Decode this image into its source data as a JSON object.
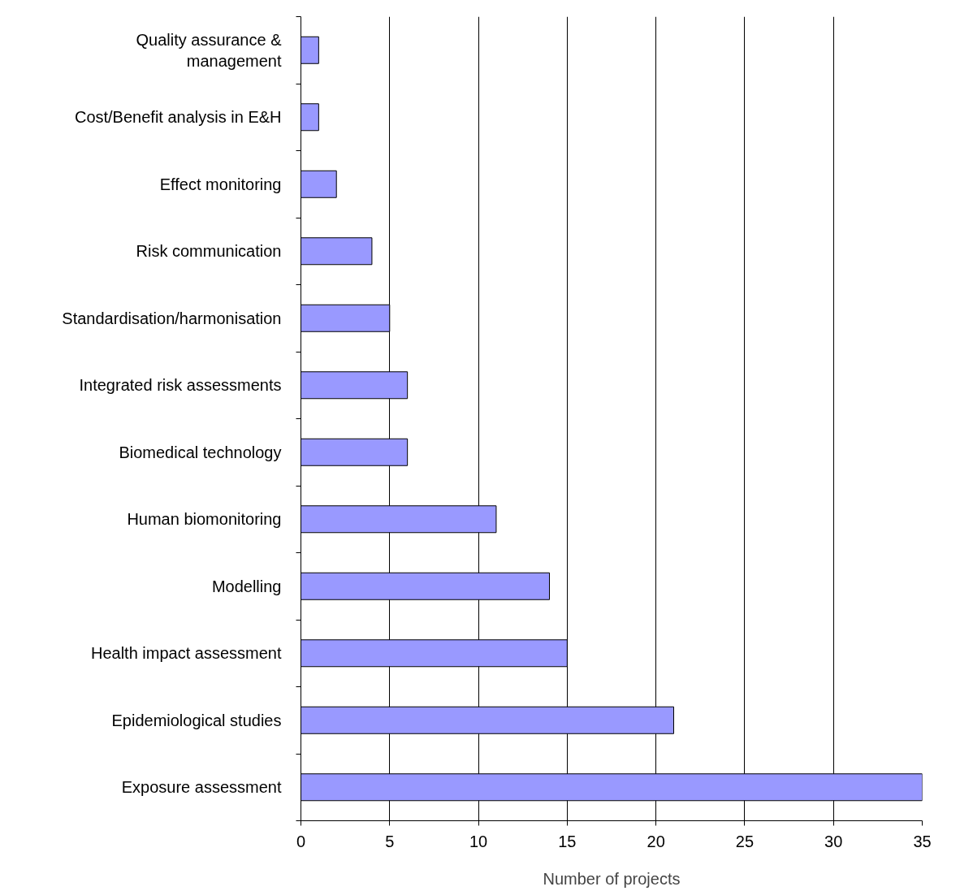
{
  "chart_data": {
    "type": "bar",
    "orientation": "horizontal",
    "xlabel": "Number of projects",
    "categories": [
      "Quality assurance & management",
      "Cost/Benefit analysis in E&H",
      "Effect monitoring",
      "Risk communication",
      "Standardisation/harmonisation",
      "Integrated risk assessments",
      "Biomedical technology",
      "Human biomonitoring",
      "Modelling",
      "Health impact assessment",
      "Epidemiological studies",
      "Exposure assessment"
    ],
    "values": [
      1,
      1,
      2,
      4,
      5,
      6,
      6,
      11,
      14,
      15,
      21,
      35
    ],
    "color": "#9999ff",
    "xlim": [
      0,
      35
    ],
    "xticks": [
      0,
      5,
      10,
      15,
      20,
      25,
      30,
      35
    ],
    "grid": "x"
  }
}
